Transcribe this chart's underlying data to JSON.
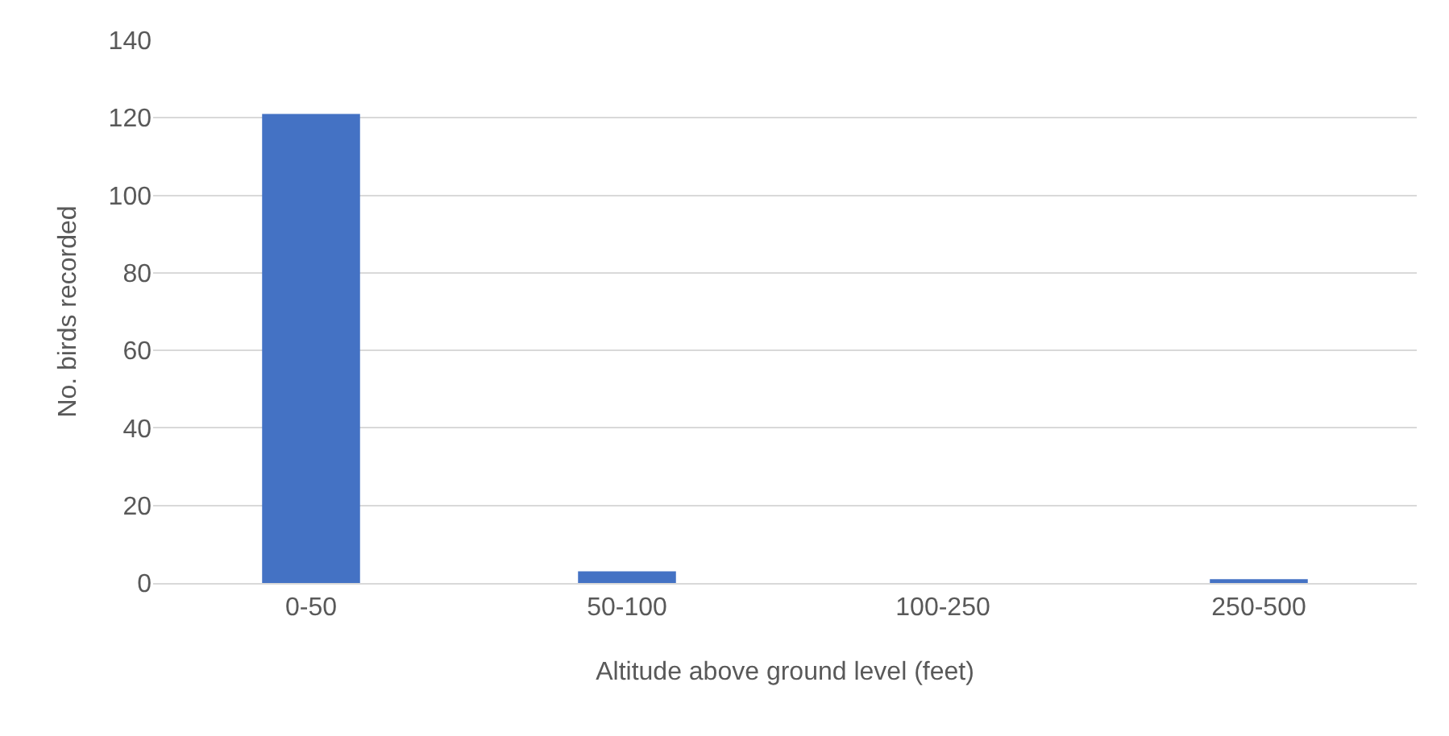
{
  "chart_data": {
    "type": "bar",
    "xlabel": "Altitude above ground level (feet)",
    "ylabel": "No. birds recorded",
    "categories": [
      "0-50",
      "50-100",
      "100-250",
      "250-500"
    ],
    "values": [
      121,
      3,
      0,
      1
    ],
    "color": "#4472c4",
    "ylim": [
      0,
      140
    ],
    "yticks": [
      0,
      20,
      40,
      60,
      80,
      100,
      120,
      140
    ],
    "grid": "y"
  }
}
